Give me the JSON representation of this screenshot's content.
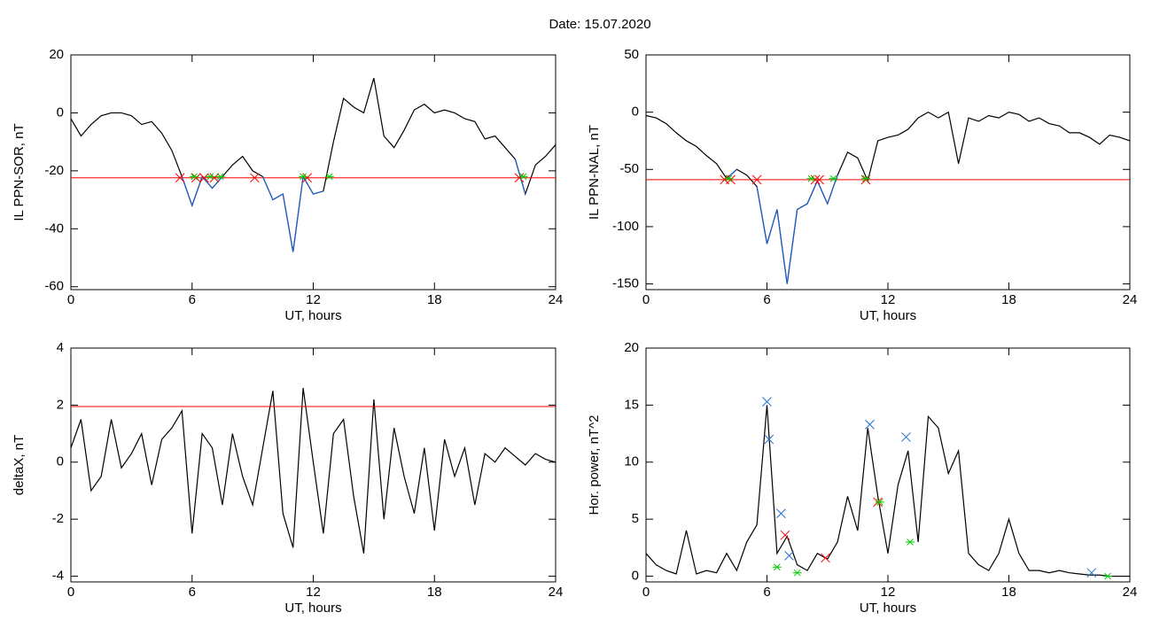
{
  "title": "Date:  15.07.2020",
  "chart_data": [
    {
      "type": "line",
      "ylabel": "IL PPN-SOR, nT",
      "xlabel": "UT, hours",
      "xlim": [
        0,
        24
      ],
      "xticks": [
        0,
        6,
        12,
        18,
        24
      ],
      "ylim": [
        -61,
        20
      ],
      "yticks": [
        -60,
        -40,
        -20,
        0,
        20
      ],
      "hline": {
        "value": -22.4,
        "color": "#ff0000"
      },
      "x": [
        0,
        0.5,
        1,
        1.5,
        2,
        2.5,
        3,
        3.5,
        4,
        4.5,
        5,
        5.5,
        6,
        6.5,
        7,
        7.5,
        8,
        8.5,
        9,
        9.5,
        10,
        10.5,
        11,
        11.5,
        12,
        12.5,
        13,
        13.5,
        14,
        14.5,
        15,
        15.5,
        16,
        16.5,
        17,
        17.5,
        18,
        18.5,
        19,
        19.5,
        20,
        20.5,
        21,
        21.5,
        22,
        22.5,
        23,
        23.5,
        24
      ],
      "series": [
        {
          "color": "#000000",
          "values": [
            -2,
            -8,
            -4,
            -1,
            0,
            0,
            -1,
            -4,
            -3,
            -7,
            -13,
            -22,
            -32,
            -22,
            -26,
            -22,
            -18,
            -15,
            -20,
            -22,
            -30,
            -28,
            -48,
            -22,
            -28,
            -27,
            -10,
            5,
            2,
            0,
            12,
            -8,
            -12,
            -6,
            1,
            3,
            0,
            1,
            0,
            -2,
            -3,
            -9,
            -8,
            -12,
            -16,
            -28,
            -18,
            -15,
            -11
          ]
        },
        {
          "color": "#1f5fd0",
          "values": [
            null,
            null,
            null,
            null,
            null,
            null,
            null,
            null,
            null,
            null,
            null,
            -22,
            -32,
            -22,
            -26,
            -22,
            null,
            null,
            null,
            -22,
            -30,
            -28,
            -48,
            -22,
            -28,
            -27,
            null,
            null,
            null,
            null,
            null,
            null,
            null,
            null,
            null,
            null,
            null,
            null,
            null,
            null,
            null,
            null,
            null,
            null,
            -16,
            -28,
            null,
            null,
            null
          ]
        },
        {
          "color": "#ff0000",
          "marker": "x",
          "x": [
            5.4,
            6.2,
            6.6,
            7.1,
            9.1,
            11.7,
            22.2
          ],
          "values": [
            -22.4,
            -22.4,
            -22.4,
            -22.4,
            -22.4,
            -22.4,
            -22.4
          ]
        },
        {
          "color": "#00cc00",
          "marker": "*",
          "x": [
            6.1,
            6.9,
            7.4,
            11.5,
            12.8,
            22.4
          ],
          "values": [
            -22,
            -22,
            -22,
            -22,
            -22,
            -22
          ]
        }
      ]
    },
    {
      "type": "line",
      "ylabel": "IL PPN-NAL, nT",
      "xlabel": "UT, hours",
      "xlim": [
        0,
        24
      ],
      "xticks": [
        0,
        6,
        12,
        18,
        24
      ],
      "ylim": [
        -155,
        50
      ],
      "yticks": [
        -150,
        -100,
        -50,
        0,
        50
      ],
      "hline": {
        "value": -59,
        "color": "#ff0000"
      },
      "x": [
        0,
        0.5,
        1,
        1.5,
        2,
        2.5,
        3,
        3.5,
        4,
        4.5,
        5,
        5.5,
        6,
        6.5,
        7,
        7.5,
        8,
        8.5,
        9,
        9.5,
        10,
        10.5,
        11,
        11.5,
        12,
        12.5,
        13,
        13.5,
        14,
        14.5,
        15,
        15.5,
        16,
        16.5,
        17,
        17.5,
        18,
        18.5,
        19,
        19.5,
        20,
        20.5,
        21,
        21.5,
        22,
        22.5,
        23,
        23.5,
        24
      ],
      "series": [
        {
          "color": "#000000",
          "values": [
            -3,
            -5,
            -10,
            -18,
            -25,
            -30,
            -38,
            -45,
            -58,
            -50,
            -55,
            -65,
            -115,
            -85,
            -150,
            -85,
            -80,
            -60,
            -80,
            -55,
            -35,
            -40,
            -60,
            -25,
            -22,
            -20,
            -15,
            -5,
            0,
            -5,
            0,
            -45,
            -5,
            -8,
            -3,
            -5,
            0,
            -2,
            -8,
            -5,
            -10,
            -12,
            -18,
            -18,
            -22,
            -28,
            -20,
            -22,
            -25
          ]
        },
        {
          "color": "#1f5fd0",
          "values": [
            null,
            null,
            null,
            null,
            null,
            null,
            null,
            null,
            -58,
            -50,
            null,
            -65,
            -115,
            -85,
            -150,
            -85,
            -80,
            -60,
            -80,
            -55,
            null,
            null,
            null,
            null,
            null,
            null,
            null,
            null,
            null,
            null,
            null,
            null,
            null,
            null,
            null,
            null,
            null,
            null,
            null,
            null,
            null,
            null,
            null,
            null,
            null,
            null,
            null,
            null,
            null
          ]
        },
        {
          "color": "#ff0000",
          "marker": "x",
          "x": [
            3.9,
            4.2,
            5.5,
            8.4,
            8.6,
            10.9
          ],
          "values": [
            -59,
            -59,
            -59,
            -59,
            -59,
            -59
          ]
        },
        {
          "color": "#00cc00",
          "marker": "*",
          "x": [
            4.1,
            8.2,
            9.3,
            10.9
          ],
          "values": [
            -58,
            -58,
            -58,
            -58
          ]
        }
      ]
    },
    {
      "type": "line",
      "ylabel": "deltaX, nT",
      "xlabel": "UT, hours",
      "xlim": [
        0,
        24
      ],
      "xticks": [
        0,
        6,
        12,
        18,
        24
      ],
      "ylim": [
        -4.2,
        4
      ],
      "yticks": [
        -4,
        -2,
        0,
        2,
        4
      ],
      "hline": {
        "value": 1.95,
        "color": "#ff0000"
      },
      "x": [
        0,
        0.5,
        1,
        1.5,
        2,
        2.5,
        3,
        3.5,
        4,
        4.5,
        5,
        5.5,
        6,
        6.5,
        7,
        7.5,
        8,
        8.5,
        9,
        9.5,
        10,
        10.5,
        11,
        11.5,
        12,
        12.5,
        13,
        13.5,
        14,
        14.5,
        15,
        15.5,
        16,
        16.5,
        17,
        17.5,
        18,
        18.5,
        19,
        19.5,
        20,
        20.5,
        21,
        21.5,
        22,
        22.5,
        23,
        23.5,
        24
      ],
      "series": [
        {
          "color": "#000000",
          "values": [
            0.5,
            1.5,
            -1,
            -0.5,
            1.5,
            -0.2,
            0.3,
            1,
            -0.8,
            0.8,
            1.2,
            1.8,
            -2.5,
            1,
            0.5,
            -1.5,
            1,
            -0.5,
            -1.5,
            0.5,
            2.5,
            -1.8,
            -3,
            2.6,
            0,
            -2.5,
            1,
            1.5,
            -1.2,
            -3.2,
            2.2,
            -2,
            1.2,
            -0.5,
            -1.8,
            0.5,
            -2.4,
            0.8,
            -0.5,
            0.5,
            -1.5,
            0.3,
            0,
            0.5,
            0.2,
            -0.1,
            0.3,
            0.1,
            0
          ]
        }
      ]
    },
    {
      "type": "line",
      "ylabel": "Hor. power, nT^2",
      "xlabel": "UT, hours",
      "xlim": [
        0,
        24
      ],
      "xticks": [
        0,
        6,
        12,
        18,
        24
      ],
      "ylim": [
        -0.5,
        20
      ],
      "yticks": [
        0,
        5,
        10,
        15,
        20
      ],
      "x": [
        0,
        0.5,
        1,
        1.5,
        2,
        2.5,
        3,
        3.5,
        4,
        4.5,
        5,
        5.5,
        6,
        6.5,
        7,
        7.5,
        8,
        8.5,
        9,
        9.5,
        10,
        10.5,
        11,
        11.5,
        12,
        12.5,
        13,
        13.5,
        14,
        14.5,
        15,
        15.5,
        16,
        16.5,
        17,
        17.5,
        18,
        18.5,
        19,
        19.5,
        20,
        20.5,
        21,
        21.5,
        22,
        22.5,
        23,
        23.5,
        24
      ],
      "series": [
        {
          "color": "#000000",
          "values": [
            2,
            1,
            0.5,
            0.2,
            4,
            0.2,
            0.5,
            0.3,
            2,
            0.5,
            3,
            4.5,
            15,
            2,
            3.5,
            1,
            0.5,
            2,
            1.5,
            3,
            7,
            4,
            13,
            7,
            2,
            8,
            11,
            3,
            14,
            13,
            9,
            11,
            2,
            1,
            0.5,
            2,
            5,
            2,
            0.5,
            0.5,
            0.3,
            0.5,
            0.3,
            0.2,
            0.1,
            0.1,
            0,
            0,
            0
          ]
        },
        {
          "color": "#1f6fd0",
          "marker": "x",
          "x": [
            6,
            6.1,
            6.7,
            7.1,
            11.1,
            12.9,
            22.1
          ],
          "values": [
            15.3,
            12,
            5.5,
            1.8,
            13.3,
            12.2,
            0.3
          ]
        },
        {
          "color": "#ff0000",
          "marker": "x",
          "x": [
            6.9,
            8.9,
            11.5
          ],
          "values": [
            3.6,
            1.6,
            6.5
          ]
        },
        {
          "color": "#00cc00",
          "marker": "*",
          "x": [
            6.5,
            7.5,
            11.6,
            13.1,
            22.9
          ],
          "values": [
            0.8,
            0.3,
            6.5,
            3,
            0
          ]
        }
      ]
    }
  ]
}
